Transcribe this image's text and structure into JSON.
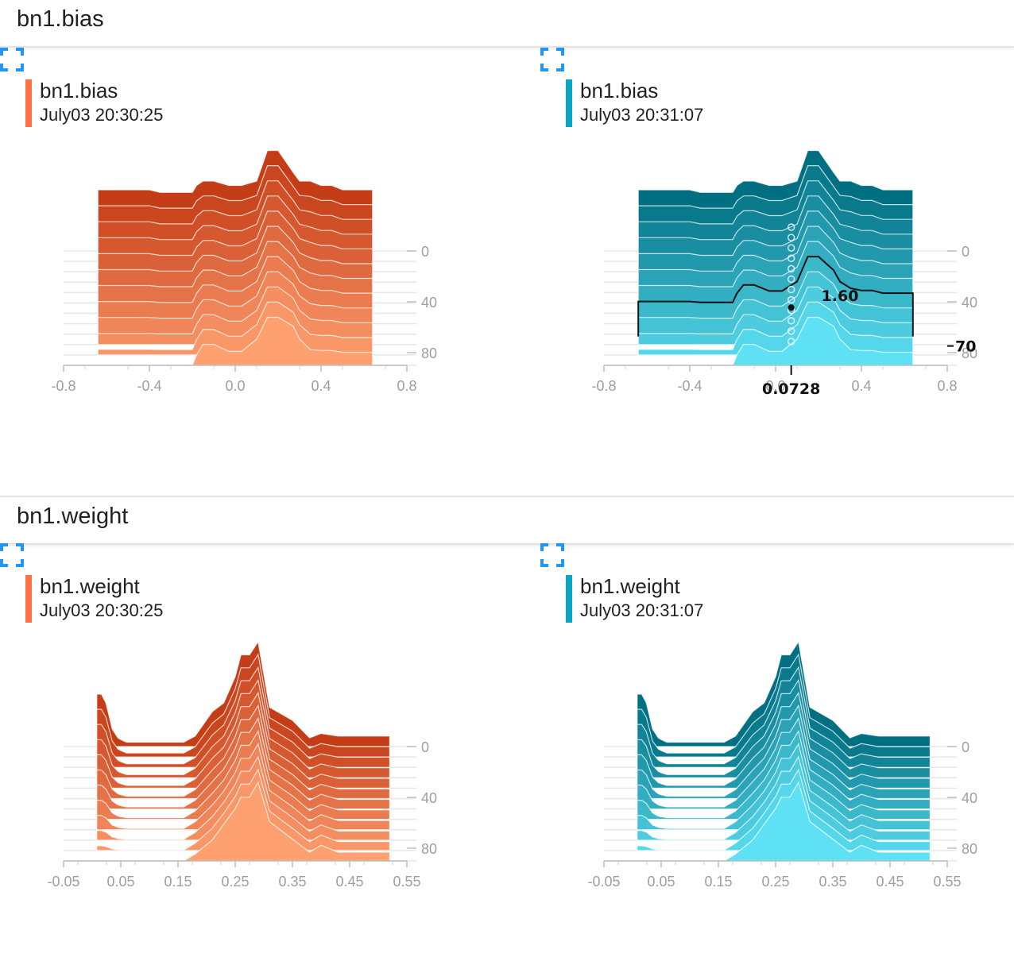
{
  "sections": [
    {
      "title": "bn1.bias",
      "cards": [
        {
          "title": "bn1.bias",
          "subtitle": "July03 20:30:25",
          "color": "#ff7043"
        },
        {
          "title": "bn1.bias",
          "subtitle": "July03 20:31:07",
          "color": "#0097a7"
        }
      ]
    },
    {
      "title": "bn1.weight",
      "cards": [
        {
          "title": "bn1.weight",
          "subtitle": "July03 20:30:25",
          "color": "#ff7043"
        },
        {
          "title": "bn1.weight",
          "subtitle": "July03 20:31:07",
          "color": "#0097a7"
        }
      ]
    }
  ],
  "palettes": {
    "orange": {
      "back": "#c53d17",
      "front": "#ffa070",
      "bar": "#ff7043"
    },
    "teal": {
      "back": "#006f82",
      "front": "#5ee1f5",
      "bar": "#0ba7c2"
    }
  },
  "icons": {
    "expand": "fullscreen-icon"
  },
  "chart_data": [
    {
      "type": "area",
      "style": "histogram-offset",
      "palette": "orange",
      "x_ticks": [
        "-0.8",
        "-0.4",
        "0.0",
        "0.4",
        "0.8"
      ],
      "xlim": [
        -0.8,
        0.8
      ],
      "y_ticks": [
        "0",
        "40",
        "80"
      ],
      "steps": [
        0,
        8,
        16,
        24,
        32,
        40,
        48,
        56,
        64,
        72,
        80,
        88
      ],
      "x": [
        -0.64,
        -0.55,
        -0.4,
        -0.35,
        -0.2,
        -0.18,
        -0.15,
        -0.1,
        -0.03,
        0.03,
        0.1,
        0.15,
        0.2,
        0.27,
        0.3,
        0.35,
        0.4,
        0.45,
        0.5,
        0.64
      ],
      "y_back": [
        0.7,
        0.7,
        0.7,
        0.67,
        0.67,
        0.75,
        0.8,
        0.8,
        0.75,
        0.75,
        0.8,
        1.15,
        1.15,
        0.9,
        0.8,
        0.8,
        0.75,
        0.75,
        0.7,
        0.7
      ],
      "y_front": [
        0,
        0,
        0,
        0,
        0,
        0.12,
        0.24,
        0.24,
        0.16,
        0.16,
        0.3,
        0.55,
        0.55,
        0.45,
        0.3,
        0.18,
        0.17,
        0.17,
        0.15,
        0.15
      ],
      "hover": null
    },
    {
      "type": "area",
      "style": "histogram-offset",
      "palette": "teal",
      "x_ticks": [
        "-0.8",
        "-0.4",
        "0.0",
        "0.4",
        "0.8"
      ],
      "xlim": [
        -0.8,
        0.8
      ],
      "y_ticks": [
        "0",
        "40",
        "80"
      ],
      "steps": [
        0,
        8,
        16,
        24,
        32,
        40,
        48,
        56,
        64,
        72,
        80,
        88
      ],
      "x": [
        -0.64,
        -0.55,
        -0.4,
        -0.35,
        -0.2,
        -0.18,
        -0.15,
        -0.1,
        -0.03,
        0.03,
        0.1,
        0.15,
        0.2,
        0.27,
        0.3,
        0.35,
        0.4,
        0.45,
        0.5,
        0.64
      ],
      "y_back": [
        0.7,
        0.7,
        0.7,
        0.67,
        0.67,
        0.75,
        0.8,
        0.8,
        0.75,
        0.75,
        0.8,
        1.15,
        1.15,
        0.9,
        0.8,
        0.8,
        0.75,
        0.75,
        0.7,
        0.7
      ],
      "y_front": [
        0,
        0,
        0,
        0,
        0,
        0.12,
        0.24,
        0.24,
        0.16,
        0.16,
        0.3,
        0.55,
        0.55,
        0.45,
        0.3,
        0.18,
        0.17,
        0.17,
        0.15,
        0.15
      ],
      "hover": {
        "x_value": "0.0728",
        "y_value": "1.60",
        "step_label": "70",
        "step_index": 7,
        "x": 0.0728
      }
    },
    {
      "type": "area",
      "style": "histogram-offset",
      "palette": "orange",
      "x_ticks": [
        "-0.05",
        "0.05",
        "0.15",
        "0.25",
        "0.35",
        "0.45",
        "0.55"
      ],
      "xlim": [
        -0.05,
        0.55
      ],
      "y_ticks": [
        "0",
        "40",
        "80"
      ],
      "steps": [
        0,
        8,
        16,
        24,
        32,
        40,
        48,
        56,
        64,
        72,
        80,
        88
      ],
      "x": [
        0.008,
        0.016,
        0.024,
        0.035,
        0.045,
        0.05,
        0.06,
        0.13,
        0.16,
        0.18,
        0.21,
        0.23,
        0.25,
        0.26,
        0.275,
        0.29,
        0.31,
        0.35,
        0.38,
        0.4,
        0.43,
        0.47,
        0.52
      ],
      "y_back": [
        0.6,
        0.6,
        0.5,
        0.2,
        0.1,
        0.08,
        0.05,
        0.05,
        0.05,
        0.12,
        0.4,
        0.5,
        0.8,
        1.05,
        1.05,
        1.2,
        0.45,
        0.3,
        0.1,
        0.15,
        0.12,
        0.12,
        0.12
      ],
      "y_front": [
        0,
        0,
        0,
        0,
        0,
        0,
        0,
        0,
        0,
        0.08,
        0.24,
        0.42,
        0.6,
        0.73,
        0.73,
        0.9,
        0.45,
        0.25,
        0.1,
        0.18,
        0.1,
        0.1,
        0.1
      ],
      "hover": null
    },
    {
      "type": "area",
      "style": "histogram-offset",
      "palette": "teal",
      "x_ticks": [
        "-0.05",
        "0.05",
        "0.15",
        "0.25",
        "0.35",
        "0.45",
        "0.55"
      ],
      "xlim": [
        -0.05,
        0.55
      ],
      "y_ticks": [
        "0",
        "40",
        "80"
      ],
      "steps": [
        0,
        8,
        16,
        24,
        32,
        40,
        48,
        56,
        64,
        72,
        80,
        88
      ],
      "x": [
        0.008,
        0.016,
        0.024,
        0.035,
        0.045,
        0.05,
        0.06,
        0.13,
        0.16,
        0.18,
        0.21,
        0.23,
        0.25,
        0.26,
        0.275,
        0.29,
        0.31,
        0.35,
        0.38,
        0.4,
        0.43,
        0.47,
        0.52
      ],
      "y_back": [
        0.6,
        0.6,
        0.5,
        0.2,
        0.1,
        0.08,
        0.05,
        0.05,
        0.05,
        0.12,
        0.4,
        0.5,
        0.8,
        1.05,
        1.05,
        1.2,
        0.45,
        0.3,
        0.1,
        0.15,
        0.12,
        0.12,
        0.12
      ],
      "y_front": [
        0,
        0,
        0,
        0,
        0,
        0,
        0,
        0,
        0,
        0.08,
        0.24,
        0.42,
        0.6,
        0.73,
        0.73,
        0.9,
        0.45,
        0.25,
        0.1,
        0.18,
        0.1,
        0.1,
        0.1
      ],
      "hover": null
    }
  ]
}
